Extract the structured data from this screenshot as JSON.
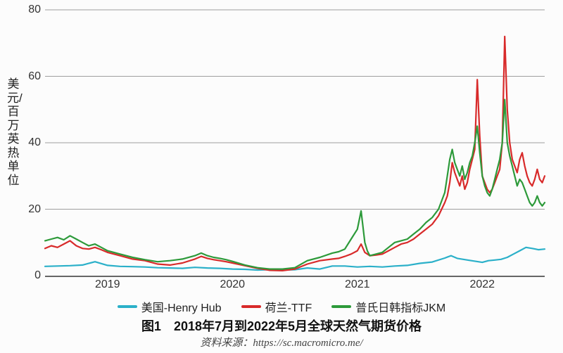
{
  "chart": {
    "type": "line",
    "background_color": "#fcfcfc",
    "grid_color": "#9e9e9e",
    "axis_color": "#666666",
    "line_width": 2.2,
    "ylim": [
      0,
      80
    ],
    "yticks": [
      0,
      20,
      40,
      60,
      80
    ],
    "y_axis_title": "美元/百万英热单位",
    "y_label_fontsize": 17,
    "tick_fontsize": 16,
    "x_range": [
      2018.5,
      2022.5
    ],
    "x_ticks": [
      {
        "value": 2019,
        "label": "2019"
      },
      {
        "value": 2020,
        "label": "2020"
      },
      {
        "value": 2021,
        "label": "2021"
      },
      {
        "value": 2022,
        "label": "2022"
      }
    ],
    "series": [
      {
        "name": "美国-Henry Hub",
        "color": "#2bb0c9",
        "points": [
          [
            2018.5,
            2.8
          ],
          [
            2018.6,
            2.9
          ],
          [
            2018.7,
            3.0
          ],
          [
            2018.8,
            3.2
          ],
          [
            2018.9,
            4.2
          ],
          [
            2019.0,
            3.1
          ],
          [
            2019.1,
            2.8
          ],
          [
            2019.2,
            2.7
          ],
          [
            2019.3,
            2.6
          ],
          [
            2019.4,
            2.4
          ],
          [
            2019.5,
            2.3
          ],
          [
            2019.6,
            2.2
          ],
          [
            2019.7,
            2.5
          ],
          [
            2019.8,
            2.3
          ],
          [
            2019.9,
            2.2
          ],
          [
            2020.0,
            2.0
          ],
          [
            2020.1,
            1.9
          ],
          [
            2020.2,
            1.7
          ],
          [
            2020.3,
            1.8
          ],
          [
            2020.4,
            1.7
          ],
          [
            2020.5,
            1.8
          ],
          [
            2020.6,
            2.3
          ],
          [
            2020.7,
            2.0
          ],
          [
            2020.8,
            2.9
          ],
          [
            2020.9,
            2.9
          ],
          [
            2021.0,
            2.6
          ],
          [
            2021.1,
            2.8
          ],
          [
            2021.2,
            2.6
          ],
          [
            2021.3,
            2.9
          ],
          [
            2021.4,
            3.1
          ],
          [
            2021.5,
            3.7
          ],
          [
            2021.6,
            4.1
          ],
          [
            2021.7,
            5.3
          ],
          [
            2021.75,
            6.0
          ],
          [
            2021.8,
            5.2
          ],
          [
            2021.9,
            4.6
          ],
          [
            2022.0,
            4.0
          ],
          [
            2022.05,
            4.5
          ],
          [
            2022.1,
            4.7
          ],
          [
            2022.15,
            4.9
          ],
          [
            2022.2,
            5.5
          ],
          [
            2022.25,
            6.5
          ],
          [
            2022.3,
            7.5
          ],
          [
            2022.35,
            8.5
          ],
          [
            2022.4,
            8.2
          ],
          [
            2022.45,
            7.8
          ],
          [
            2022.5,
            8.0
          ]
        ]
      },
      {
        "name": "荷兰-TTF",
        "color": "#d82a2a",
        "points": [
          [
            2018.5,
            8.2
          ],
          [
            2018.55,
            9.0
          ],
          [
            2018.6,
            8.5
          ],
          [
            2018.65,
            9.5
          ],
          [
            2018.7,
            10.5
          ],
          [
            2018.75,
            9.0
          ],
          [
            2018.8,
            8.2
          ],
          [
            2018.85,
            8.0
          ],
          [
            2018.9,
            8.5
          ],
          [
            2018.95,
            7.8
          ],
          [
            2019.0,
            7.0
          ],
          [
            2019.1,
            6.0
          ],
          [
            2019.2,
            5.0
          ],
          [
            2019.3,
            4.5
          ],
          [
            2019.4,
            3.5
          ],
          [
            2019.5,
            3.2
          ],
          [
            2019.6,
            3.8
          ],
          [
            2019.7,
            5.0
          ],
          [
            2019.75,
            5.8
          ],
          [
            2019.8,
            5.2
          ],
          [
            2019.85,
            4.8
          ],
          [
            2019.9,
            4.5
          ],
          [
            2019.95,
            4.2
          ],
          [
            2020.0,
            3.8
          ],
          [
            2020.1,
            3.0
          ],
          [
            2020.2,
            2.2
          ],
          [
            2020.3,
            1.6
          ],
          [
            2020.4,
            1.5
          ],
          [
            2020.5,
            2.0
          ],
          [
            2020.6,
            3.5
          ],
          [
            2020.7,
            4.5
          ],
          [
            2020.8,
            5.0
          ],
          [
            2020.85,
            5.2
          ],
          [
            2020.9,
            5.8
          ],
          [
            2020.95,
            6.5
          ],
          [
            2021.0,
            7.5
          ],
          [
            2021.03,
            9.5
          ],
          [
            2021.06,
            7.0
          ],
          [
            2021.1,
            6.0
          ],
          [
            2021.15,
            6.2
          ],
          [
            2021.2,
            6.5
          ],
          [
            2021.25,
            7.5
          ],
          [
            2021.3,
            8.5
          ],
          [
            2021.35,
            9.5
          ],
          [
            2021.4,
            10.0
          ],
          [
            2021.45,
            11.0
          ],
          [
            2021.5,
            12.5
          ],
          [
            2021.55,
            14.0
          ],
          [
            2021.6,
            15.5
          ],
          [
            2021.65,
            18.0
          ],
          [
            2021.7,
            22.0
          ],
          [
            2021.72,
            24.0
          ],
          [
            2021.74,
            28.0
          ],
          [
            2021.76,
            34.0
          ],
          [
            2021.78,
            31.0
          ],
          [
            2021.8,
            29.0
          ],
          [
            2021.82,
            27.0
          ],
          [
            2021.84,
            30.0
          ],
          [
            2021.86,
            26.0
          ],
          [
            2021.88,
            28.0
          ],
          [
            2021.9,
            32.0
          ],
          [
            2021.92,
            35.0
          ],
          [
            2021.94,
            38.0
          ],
          [
            2021.96,
            59.0
          ],
          [
            2021.98,
            42.0
          ],
          [
            2022.0,
            30.0
          ],
          [
            2022.02,
            28.0
          ],
          [
            2022.04,
            26.0
          ],
          [
            2022.06,
            25.0
          ],
          [
            2022.08,
            26.0
          ],
          [
            2022.1,
            28.0
          ],
          [
            2022.12,
            30.0
          ],
          [
            2022.14,
            32.0
          ],
          [
            2022.16,
            40.0
          ],
          [
            2022.18,
            72.0
          ],
          [
            2022.2,
            50.0
          ],
          [
            2022.22,
            40.0
          ],
          [
            2022.24,
            35.0
          ],
          [
            2022.26,
            33.0
          ],
          [
            2022.28,
            31.0
          ],
          [
            2022.3,
            35.0
          ],
          [
            2022.32,
            37.0
          ],
          [
            2022.34,
            33.0
          ],
          [
            2022.36,
            30.0
          ],
          [
            2022.38,
            28.0
          ],
          [
            2022.4,
            27.0
          ],
          [
            2022.42,
            29.0
          ],
          [
            2022.44,
            32.0
          ],
          [
            2022.46,
            29.0
          ],
          [
            2022.48,
            28.0
          ],
          [
            2022.5,
            30.0
          ]
        ]
      },
      {
        "name": "普氏日韩指标JKM",
        "color": "#2d9a3a",
        "points": [
          [
            2018.5,
            10.5
          ],
          [
            2018.55,
            11.0
          ],
          [
            2018.6,
            11.5
          ],
          [
            2018.65,
            10.8
          ],
          [
            2018.7,
            12.0
          ],
          [
            2018.75,
            11.0
          ],
          [
            2018.8,
            10.0
          ],
          [
            2018.85,
            9.0
          ],
          [
            2018.9,
            9.5
          ],
          [
            2018.95,
            8.5
          ],
          [
            2019.0,
            7.5
          ],
          [
            2019.1,
            6.5
          ],
          [
            2019.2,
            5.5
          ],
          [
            2019.3,
            4.8
          ],
          [
            2019.4,
            4.2
          ],
          [
            2019.5,
            4.5
          ],
          [
            2019.6,
            5.0
          ],
          [
            2019.7,
            6.0
          ],
          [
            2019.75,
            6.8
          ],
          [
            2019.8,
            6.0
          ],
          [
            2019.85,
            5.5
          ],
          [
            2019.9,
            5.2
          ],
          [
            2019.95,
            4.8
          ],
          [
            2020.0,
            4.3
          ],
          [
            2020.1,
            3.2
          ],
          [
            2020.2,
            2.4
          ],
          [
            2020.3,
            2.0
          ],
          [
            2020.4,
            2.0
          ],
          [
            2020.5,
            2.4
          ],
          [
            2020.6,
            4.5
          ],
          [
            2020.7,
            5.5
          ],
          [
            2020.8,
            6.8
          ],
          [
            2020.85,
            7.2
          ],
          [
            2020.9,
            8.0
          ],
          [
            2020.95,
            11.0
          ],
          [
            2021.0,
            14.0
          ],
          [
            2021.03,
            19.5
          ],
          [
            2021.06,
            10.0
          ],
          [
            2021.08,
            7.5
          ],
          [
            2021.1,
            6.0
          ],
          [
            2021.15,
            6.5
          ],
          [
            2021.2,
            7.0
          ],
          [
            2021.25,
            8.5
          ],
          [
            2021.3,
            10.0
          ],
          [
            2021.35,
            10.5
          ],
          [
            2021.4,
            11.0
          ],
          [
            2021.45,
            12.5
          ],
          [
            2021.5,
            14.0
          ],
          [
            2021.55,
            16.0
          ],
          [
            2021.6,
            17.5
          ],
          [
            2021.65,
            20.0
          ],
          [
            2021.7,
            25.0
          ],
          [
            2021.72,
            30.0
          ],
          [
            2021.74,
            35.0
          ],
          [
            2021.76,
            38.0
          ],
          [
            2021.78,
            34.0
          ],
          [
            2021.8,
            32.0
          ],
          [
            2021.82,
            30.0
          ],
          [
            2021.84,
            33.0
          ],
          [
            2021.86,
            29.0
          ],
          [
            2021.88,
            31.0
          ],
          [
            2021.9,
            34.0
          ],
          [
            2021.92,
            36.0
          ],
          [
            2021.94,
            40.0
          ],
          [
            2021.96,
            45.0
          ],
          [
            2021.98,
            37.0
          ],
          [
            2022.0,
            30.0
          ],
          [
            2022.02,
            27.0
          ],
          [
            2022.04,
            25.0
          ],
          [
            2022.06,
            24.0
          ],
          [
            2022.08,
            26.0
          ],
          [
            2022.1,
            29.0
          ],
          [
            2022.12,
            32.0
          ],
          [
            2022.14,
            35.0
          ],
          [
            2022.16,
            40.0
          ],
          [
            2022.18,
            53.0
          ],
          [
            2022.2,
            40.0
          ],
          [
            2022.22,
            36.0
          ],
          [
            2022.24,
            33.0
          ],
          [
            2022.26,
            30.0
          ],
          [
            2022.28,
            27.0
          ],
          [
            2022.3,
            29.0
          ],
          [
            2022.32,
            28.0
          ],
          [
            2022.34,
            26.0
          ],
          [
            2022.36,
            24.0
          ],
          [
            2022.38,
            22.0
          ],
          [
            2022.4,
            21.0
          ],
          [
            2022.42,
            22.0
          ],
          [
            2022.44,
            24.0
          ],
          [
            2022.46,
            22.0
          ],
          [
            2022.48,
            21.0
          ],
          [
            2022.5,
            22.0
          ]
        ]
      }
    ]
  },
  "legend": {
    "items": [
      {
        "label": "美国-Henry Hub",
        "color": "#2bb0c9"
      },
      {
        "label": "荷兰-TTF",
        "color": "#d82a2a"
      },
      {
        "label": "普氏日韩指标JKM",
        "color": "#2d9a3a"
      }
    ]
  },
  "caption": "图1　2018年7月到2022年5月全球天然气期货价格",
  "source": "资料来源：https://sc.macromicro.me/"
}
